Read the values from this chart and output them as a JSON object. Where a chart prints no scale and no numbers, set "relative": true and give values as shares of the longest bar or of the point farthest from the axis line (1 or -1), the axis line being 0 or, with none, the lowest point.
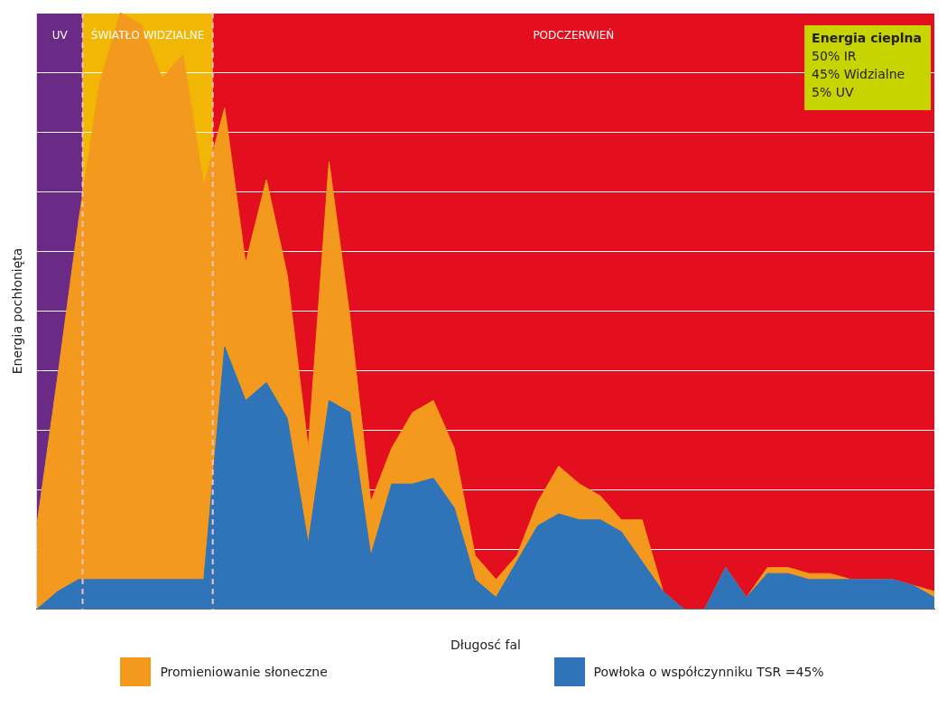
{
  "chart_data": {
    "type": "area",
    "relative": true,
    "xlabel": "Długosć fal",
    "ylabel": "Energia pochłonięta",
    "categories": [
      null,
      null,
      null,
      null,
      null,
      null,
      null,
      null,
      null,
      null,
      null,
      null,
      null,
      null,
      null,
      null,
      null,
      null,
      null,
      null,
      null,
      null,
      null,
      null,
      null,
      null,
      null,
      null,
      null,
      null,
      null,
      null,
      null,
      null,
      null,
      null,
      null,
      null,
      null,
      null,
      null,
      null,
      null,
      null
    ],
    "series": [
      {
        "name": "Promieniowanie słoneczne",
        "color": "#f39a1e",
        "values": [
          0.14,
          0.39,
          0.65,
          0.88,
          1,
          0.98,
          0.89,
          0.93,
          0.71,
          0.84,
          0.58,
          0.72,
          0.56,
          0.27,
          0.75,
          0.49,
          0.18,
          0.27,
          0.33,
          0.35,
          0.27,
          0.09,
          0.05,
          0.09,
          0.18,
          0.24,
          0.21,
          0.19,
          0.15,
          0.15,
          0.03,
          0,
          0,
          0.07,
          0.02,
          0.07,
          0.07,
          0.06,
          0.06,
          0.05,
          0.05,
          0.05,
          0.04,
          0.03
        ]
      },
      {
        "name": "Powłoka o współczynniku TSR =45%",
        "color": "#2f74b8",
        "values": [
          0,
          0.03,
          0.05,
          0.05,
          0.05,
          0.05,
          0.05,
          0.05,
          0.05,
          0.44,
          0.35,
          0.38,
          0.32,
          0.11,
          0.35,
          0.33,
          0.09,
          0.21,
          0.21,
          0.22,
          0.17,
          0.05,
          0.02,
          0.08,
          0.14,
          0.16,
          0.15,
          0.15,
          0.13,
          0.08,
          0.03,
          0,
          0,
          0.07,
          0.02,
          0.06,
          0.06,
          0.05,
          0.05,
          0.05,
          0.05,
          0.05,
          0.04,
          0.02
        ]
      }
    ],
    "annotations": [
      "UV",
      "ŚWIATŁO WIDZIALNE",
      "PODCZERWIEŃ",
      "Energia cieplna",
      "50% IR",
      "45% Widzialne",
      "5% UV"
    ],
    "grid": "y",
    "legend": "bottom",
    "marker": "none"
  }
}
